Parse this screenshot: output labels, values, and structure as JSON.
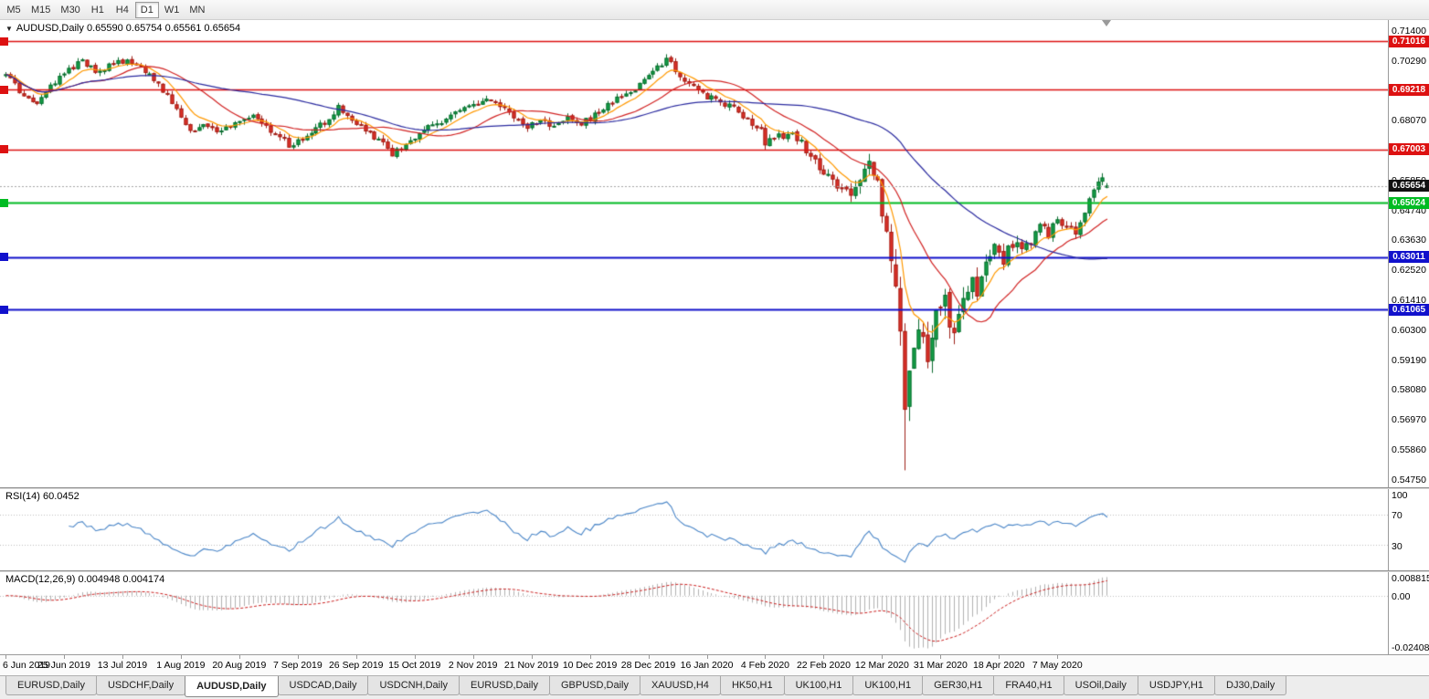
{
  "toolbar": {
    "timeframes": [
      {
        "label": "M5",
        "active": false
      },
      {
        "label": "M15",
        "active": false
      },
      {
        "label": "M30",
        "active": false
      },
      {
        "label": "H1",
        "active": false
      },
      {
        "label": "H4",
        "active": false
      },
      {
        "label": "D1",
        "active": true
      },
      {
        "label": "W1",
        "active": false
      },
      {
        "label": "MN",
        "active": false
      }
    ]
  },
  "chart": {
    "title": "AUDUSD,Daily",
    "ohlc_text": "0.65590 0.65754 0.65561 0.65654",
    "current_price": "0.65654",
    "price_range": {
      "top": 0.718,
      "bottom": 0.5447
    },
    "levels": [
      {
        "label": "0.71016",
        "price": 0.71016,
        "color": "#dd1111",
        "width": 1.4
      },
      {
        "label": "0.69218",
        "price": 0.69218,
        "color": "#dd1111",
        "width": 1.4
      },
      {
        "label": "0.67003",
        "price": 0.67003,
        "color": "#dd1111",
        "width": 1.4
      },
      {
        "label": "0.65024",
        "price": 0.65024,
        "color": "#00bb22",
        "width": 2
      },
      {
        "label": "0.63011",
        "price": 0.63011,
        "color": "#1111cc",
        "width": 2
      },
      {
        "label": "0.61065",
        "price": 0.61065,
        "color": "#1111cc",
        "width": 2
      }
    ],
    "y_axis": [
      "0.71400",
      "0.70290",
      "0.69180",
      "0.68070",
      "0.66960",
      "0.65850",
      "0.64740",
      "0.63630",
      "0.62520",
      "0.61410",
      "0.60300",
      "0.59190",
      "0.58080",
      "0.56970",
      "0.55860",
      "0.54750"
    ],
    "x_axis": [
      "6 Jun 2019",
      "25 Jun 2019",
      "13 Jul 2019",
      "1 Aug 2019",
      "20 Aug 2019",
      "7 Sep 2019",
      "26 Sep 2019",
      "15 Oct 2019",
      "2 Nov 2019",
      "21 Nov 2019",
      "10 Dec 2019",
      "28 Dec 2019",
      "16 Jan 2020",
      "4 Feb 2020",
      "22 Feb 2020",
      "12 Mar 2020",
      "31 Mar 2020",
      "18 Apr 2020",
      "7 May 2020"
    ]
  },
  "rsi": {
    "label": "RSI(14) 60.0452",
    "period": 14,
    "levels": [
      "100",
      "70",
      "30"
    ],
    "level_values": [
      100,
      70,
      30
    ],
    "line_color": "#4a86c8"
  },
  "macd": {
    "label": "MACD(12,26,9) 0.004948 0.004174",
    "axis_max": "0.008815",
    "axis_zero": "0.00",
    "axis_min": "-0.024082",
    "hist_color": "#b2b2b2",
    "signal_color": "#cc2020"
  },
  "tabs": [
    {
      "label": "EURUSD,Daily",
      "active": false
    },
    {
      "label": "USDCHF,Daily",
      "active": false
    },
    {
      "label": "AUDUSD,Daily",
      "active": true
    },
    {
      "label": "USDCAD,Daily",
      "active": false
    },
    {
      "label": "USDCNH,Daily",
      "active": false
    },
    {
      "label": "EURUSD,Daily",
      "active": false
    },
    {
      "label": "GBPUSD,Daily",
      "active": false
    },
    {
      "label": "XAUUSD,H4",
      "active": false
    },
    {
      "label": "HK50,H1",
      "active": false
    },
    {
      "label": "UK100,H1",
      "active": false
    },
    {
      "label": "UK100,H1",
      "active": false
    },
    {
      "label": "GER30,H1",
      "active": false
    },
    {
      "label": "FRA40,H1",
      "active": false
    },
    {
      "label": "USOil,Daily",
      "active": false
    },
    {
      "label": "USDJPY,H1",
      "active": false
    },
    {
      "label": "DJ30,Daily",
      "active": false
    }
  ],
  "chart_data": {
    "type": "candlestick",
    "symbol": "AUDUSD",
    "timeframe": "Daily",
    "num_days": 246,
    "tick_interval_days": 13,
    "seed": 20200522,
    "last_candle": {
      "open": 0.6559,
      "high": 0.65754,
      "low": 0.65561,
      "close": 0.65654
    },
    "pre_last_close": 0.6596,
    "recent_high": 0.6612,
    "crash_low": {
      "day": 200,
      "price": 0.551
    },
    "colors": {
      "up": "#12a348",
      "up_border": "#0b6b2f",
      "down": "#e33229",
      "down_border": "#9e1f18",
      "bid_line": "#a6a6a6"
    },
    "moving_averages": [
      {
        "kind": "ema",
        "period": 8,
        "color": "#ff9900"
      },
      {
        "kind": "sma",
        "period": 20,
        "color": "#d22424"
      },
      {
        "kind": "sma",
        "period": 55,
        "color": "#2b2ba0"
      }
    ],
    "price_anchors": [
      [
        0,
        0.6975
      ],
      [
        2,
        0.6935
      ],
      [
        5,
        0.688
      ],
      [
        7,
        0.6862
      ],
      [
        10,
        0.693
      ],
      [
        13,
        0.6985
      ],
      [
        17,
        0.7028
      ],
      [
        20,
        0.6993
      ],
      [
        24,
        0.7012
      ],
      [
        27,
        0.7038
      ],
      [
        30,
        0.7008
      ],
      [
        33,
        0.6958
      ],
      [
        36,
        0.6898
      ],
      [
        39,
        0.683
      ],
      [
        41,
        0.6768
      ],
      [
        44,
        0.68
      ],
      [
        47,
        0.6756
      ],
      [
        50,
        0.6788
      ],
      [
        52,
        0.6802
      ],
      [
        55,
        0.6824
      ],
      [
        58,
        0.6782
      ],
      [
        61,
        0.6756
      ],
      [
        63,
        0.6708
      ],
      [
        66,
        0.6738
      ],
      [
        69,
        0.6772
      ],
      [
        72,
        0.682
      ],
      [
        74,
        0.6858
      ],
      [
        78,
        0.6798
      ],
      [
        81,
        0.6758
      ],
      [
        84,
        0.6722
      ],
      [
        86,
        0.6682
      ],
      [
        88,
        0.6702
      ],
      [
        90,
        0.6732
      ],
      [
        93,
        0.6772
      ],
      [
        96,
        0.6792
      ],
      [
        99,
        0.683
      ],
      [
        102,
        0.6852
      ],
      [
        104,
        0.687
      ],
      [
        107,
        0.6888
      ],
      [
        110,
        0.6854
      ],
      [
        113,
        0.6824
      ],
      [
        116,
        0.6788
      ],
      [
        119,
        0.6806
      ],
      [
        122,
        0.679
      ],
      [
        125,
        0.6826
      ],
      [
        128,
        0.68
      ],
      [
        130,
        0.6816
      ],
      [
        133,
        0.6858
      ],
      [
        136,
        0.6886
      ],
      [
        139,
        0.6912
      ],
      [
        142,
        0.6958
      ],
      [
        145,
        0.7002
      ],
      [
        147,
        0.703
      ],
      [
        149,
        0.6998
      ],
      [
        152,
        0.6942
      ],
      [
        155,
        0.69
      ],
      [
        159,
        0.6878
      ],
      [
        162,
        0.6848
      ],
      [
        165,
        0.6808
      ],
      [
        168,
        0.6765
      ],
      [
        169,
        0.6722
      ],
      [
        172,
        0.6748
      ],
      [
        175,
        0.6762
      ],
      [
        178,
        0.67
      ],
      [
        181,
        0.6632
      ],
      [
        183,
        0.6605
      ],
      [
        185,
        0.6572
      ],
      [
        188,
        0.6545
      ],
      [
        190,
        0.66
      ],
      [
        192,
        0.665
      ],
      [
        194,
        0.6588
      ],
      [
        195,
        0.648
      ],
      [
        196,
        0.639
      ],
      [
        197,
        0.63
      ],
      [
        198,
        0.618
      ],
      [
        199,
        0.598
      ],
      [
        200,
        0.577
      ],
      [
        201,
        0.592
      ],
      [
        202,
        0.6
      ],
      [
        203,
        0.6052
      ],
      [
        204,
        0.596
      ],
      [
        205,
        0.589
      ],
      [
        206,
        0.599
      ],
      [
        207,
        0.608
      ],
      [
        208,
        0.6135
      ],
      [
        209,
        0.617
      ],
      [
        210,
        0.604
      ],
      [
        211,
        0.5985
      ],
      [
        212,
        0.606
      ],
      [
        213,
        0.614
      ],
      [
        214,
        0.619
      ],
      [
        215,
        0.623
      ],
      [
        216,
        0.617
      ],
      [
        218,
        0.627
      ],
      [
        220,
        0.6325
      ],
      [
        222,
        0.629
      ],
      [
        224,
        0.6355
      ],
      [
        226,
        0.6315
      ],
      [
        228,
        0.6365
      ],
      [
        230,
        0.642
      ],
      [
        232,
        0.6388
      ],
      [
        234,
        0.6455
      ],
      [
        236,
        0.641
      ],
      [
        238,
        0.639
      ],
      [
        240,
        0.6472
      ],
      [
        242,
        0.654
      ],
      [
        243,
        0.6572
      ],
      [
        244,
        0.6596
      ],
      [
        245,
        0.65654
      ]
    ],
    "volatility_anchors": [
      [
        0,
        0.0026
      ],
      [
        150,
        0.0026
      ],
      [
        170,
        0.0032
      ],
      [
        185,
        0.0042
      ],
      [
        192,
        0.0055
      ],
      [
        196,
        0.0095
      ],
      [
        199,
        0.014
      ],
      [
        201,
        0.015
      ],
      [
        204,
        0.012
      ],
      [
        208,
        0.0095
      ],
      [
        213,
        0.0075
      ],
      [
        218,
        0.0058
      ],
      [
        224,
        0.0048
      ],
      [
        232,
        0.004
      ],
      [
        245,
        0.0036
      ]
    ]
  }
}
